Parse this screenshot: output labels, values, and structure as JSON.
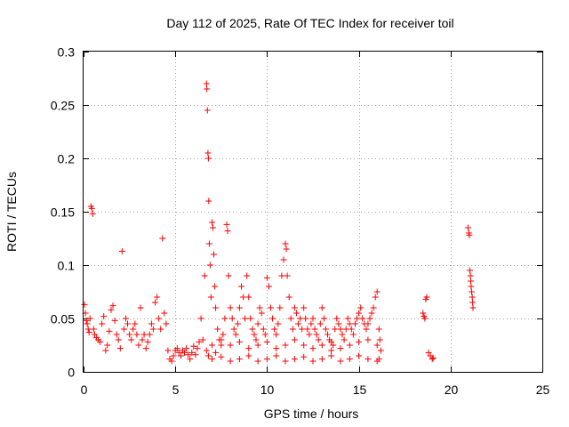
{
  "chart_data": {
    "type": "scatter",
    "title": "Day 112 of 2025, Rate Of TEC Index for receiver toil",
    "xlabel": "GPS time / hours",
    "ylabel": "ROTI / TECUs",
    "xlim": [
      0,
      25
    ],
    "ylim": [
      0,
      0.3
    ],
    "xticks": [
      0,
      5,
      10,
      15,
      20,
      25
    ],
    "xtick_labels": [
      "0",
      "5",
      "10",
      "15",
      "20",
      "25"
    ],
    "yticks": [
      0,
      0.05,
      0.1,
      0.15,
      0.2,
      0.25,
      0.3
    ],
    "ytick_labels": [
      "0",
      "0.05",
      "0.1",
      "0.15",
      "0.2",
      "0.25",
      "0.3"
    ],
    "grid": true,
    "marker": "+",
    "color": "#ff0000",
    "series": [
      {
        "name": "ROTI",
        "points": [
          [
            0.05,
            0.063
          ],
          [
            0.1,
            0.055
          ],
          [
            0.15,
            0.048
          ],
          [
            0.2,
            0.045
          ],
          [
            0.25,
            0.04
          ],
          [
            0.3,
            0.037
          ],
          [
            0.35,
            0.05
          ],
          [
            0.4,
            0.155
          ],
          [
            0.45,
            0.153
          ],
          [
            0.5,
            0.148
          ],
          [
            0.55,
            0.04
          ],
          [
            0.6,
            0.035
          ],
          [
            0.7,
            0.032
          ],
          [
            0.8,
            0.03
          ],
          [
            0.9,
            0.028
          ],
          [
            1.0,
            0.045
          ],
          [
            1.1,
            0.052
          ],
          [
            1.2,
            0.02
          ],
          [
            1.3,
            0.025
          ],
          [
            1.4,
            0.038
          ],
          [
            1.5,
            0.058
          ],
          [
            1.6,
            0.062
          ],
          [
            1.7,
            0.048
          ],
          [
            1.8,
            0.035
          ],
          [
            1.9,
            0.03
          ],
          [
            2.0,
            0.022
          ],
          [
            2.1,
            0.113
          ],
          [
            2.2,
            0.04
          ],
          [
            2.3,
            0.05
          ],
          [
            2.4,
            0.045
          ],
          [
            2.5,
            0.035
          ],
          [
            2.6,
            0.03
          ],
          [
            2.7,
            0.04
          ],
          [
            2.8,
            0.045
          ],
          [
            2.9,
            0.035
          ],
          [
            3.0,
            0.025
          ],
          [
            3.1,
            0.06
          ],
          [
            3.2,
            0.03
          ],
          [
            3.3,
            0.035
          ],
          [
            3.4,
            0.022
          ],
          [
            3.5,
            0.028
          ],
          [
            3.6,
            0.035
          ],
          [
            3.7,
            0.045
          ],
          [
            3.8,
            0.04
          ],
          [
            3.9,
            0.065
          ],
          [
            4.0,
            0.07
          ],
          [
            4.1,
            0.05
          ],
          [
            4.2,
            0.04
          ],
          [
            4.3,
            0.125
          ],
          [
            4.4,
            0.055
          ],
          [
            4.5,
            0.045
          ],
          [
            4.6,
            0.02
          ],
          [
            4.7,
            0.012
          ],
          [
            4.8,
            0.01
          ],
          [
            4.9,
            0.015
          ],
          [
            5.0,
            0.02
          ],
          [
            5.1,
            0.022
          ],
          [
            5.2,
            0.018
          ],
          [
            5.3,
            0.015
          ],
          [
            5.4,
            0.02
          ],
          [
            5.5,
            0.018
          ],
          [
            5.6,
            0.022
          ],
          [
            5.7,
            0.016
          ],
          [
            5.8,
            0.012
          ],
          [
            5.9,
            0.018
          ],
          [
            6.0,
            0.024
          ],
          [
            6.1,
            0.016
          ],
          [
            6.2,
            0.022
          ],
          [
            6.3,
            0.028
          ],
          [
            6.4,
            0.05
          ],
          [
            6.5,
            0.03
          ],
          [
            6.6,
            0.09
          ],
          [
            6.7,
            0.27
          ],
          [
            6.72,
            0.265
          ],
          [
            6.75,
            0.245
          ],
          [
            6.78,
            0.205
          ],
          [
            6.8,
            0.2
          ],
          [
            6.82,
            0.16
          ],
          [
            6.85,
            0.12
          ],
          [
            6.9,
            0.1
          ],
          [
            6.95,
            0.07
          ],
          [
            7.0,
            0.14
          ],
          [
            7.05,
            0.135
          ],
          [
            7.1,
            0.11
          ],
          [
            7.15,
            0.08
          ],
          [
            7.2,
            0.06
          ],
          [
            7.3,
            0.04
          ],
          [
            7.4,
            0.03
          ],
          [
            7.5,
            0.025
          ],
          [
            7.6,
            0.035
          ],
          [
            7.7,
            0.05
          ],
          [
            7.8,
            0.138
          ],
          [
            7.85,
            0.132
          ],
          [
            7.9,
            0.09
          ],
          [
            8.0,
            0.06
          ],
          [
            8.1,
            0.05
          ],
          [
            8.2,
            0.04
          ],
          [
            8.3,
            0.035
          ],
          [
            8.4,
            0.045
          ],
          [
            8.5,
            0.06
          ],
          [
            8.6,
            0.08
          ],
          [
            8.7,
            0.07
          ],
          [
            8.8,
            0.05
          ],
          [
            8.9,
            0.09
          ],
          [
            9.0,
            0.07
          ],
          [
            9.1,
            0.05
          ],
          [
            9.2,
            0.04
          ],
          [
            9.3,
            0.035
          ],
          [
            9.4,
            0.03
          ],
          [
            9.5,
            0.045
          ],
          [
            9.6,
            0.06
          ],
          [
            9.7,
            0.055
          ],
          [
            9.8,
            0.04
          ],
          [
            9.9,
            0.035
          ],
          [
            10.0,
            0.088
          ],
          [
            10.1,
            0.08
          ],
          [
            10.2,
            0.06
          ],
          [
            10.3,
            0.05
          ],
          [
            10.4,
            0.04
          ],
          [
            10.5,
            0.035
          ],
          [
            10.6,
            0.045
          ],
          [
            10.7,
            0.06
          ],
          [
            10.8,
            0.09
          ],
          [
            10.9,
            0.105
          ],
          [
            11.0,
            0.12
          ],
          [
            11.05,
            0.115
          ],
          [
            11.1,
            0.09
          ],
          [
            11.2,
            0.07
          ],
          [
            11.3,
            0.05
          ],
          [
            11.4,
            0.04
          ],
          [
            11.5,
            0.06
          ],
          [
            11.6,
            0.055
          ],
          [
            11.7,
            0.045
          ],
          [
            11.8,
            0.05
          ],
          [
            11.9,
            0.04
          ],
          [
            12.0,
            0.06
          ],
          [
            12.1,
            0.05
          ],
          [
            12.2,
            0.04
          ],
          [
            12.3,
            0.035
          ],
          [
            12.4,
            0.045
          ],
          [
            12.5,
            0.05
          ],
          [
            12.6,
            0.04
          ],
          [
            12.7,
            0.035
          ],
          [
            12.8,
            0.03
          ],
          [
            12.9,
            0.045
          ],
          [
            13.0,
            0.06
          ],
          [
            13.1,
            0.05
          ],
          [
            13.2,
            0.04
          ],
          [
            13.3,
            0.035
          ],
          [
            13.4,
            0.03
          ],
          [
            13.5,
            0.028
          ],
          [
            13.6,
            0.025
          ],
          [
            13.7,
            0.04
          ],
          [
            13.8,
            0.05
          ],
          [
            13.9,
            0.045
          ],
          [
            14.0,
            0.04
          ],
          [
            14.1,
            0.035
          ],
          [
            14.2,
            0.03
          ],
          [
            14.3,
            0.04
          ],
          [
            14.4,
            0.05
          ],
          [
            14.5,
            0.045
          ],
          [
            14.6,
            0.04
          ],
          [
            14.7,
            0.035
          ],
          [
            14.8,
            0.045
          ],
          [
            14.9,
            0.05
          ],
          [
            15.0,
            0.055
          ],
          [
            15.1,
            0.06
          ],
          [
            15.2,
            0.05
          ],
          [
            15.3,
            0.045
          ],
          [
            15.4,
            0.04
          ],
          [
            15.5,
            0.045
          ],
          [
            15.6,
            0.05
          ],
          [
            15.7,
            0.055
          ],
          [
            15.8,
            0.06
          ],
          [
            15.9,
            0.07
          ],
          [
            16.0,
            0.075
          ],
          [
            16.1,
            0.04
          ],
          [
            16.15,
            0.03
          ],
          [
            16.2,
            0.02
          ],
          [
            6.7,
            0.02
          ],
          [
            6.8,
            0.015
          ],
          [
            7.0,
            0.012
          ],
          [
            7.2,
            0.018
          ],
          [
            7.5,
            0.014
          ],
          [
            8.0,
            0.01
          ],
          [
            8.5,
            0.012
          ],
          [
            9.0,
            0.015
          ],
          [
            9.5,
            0.01
          ],
          [
            10.0,
            0.012
          ],
          [
            10.5,
            0.015
          ],
          [
            11.0,
            0.01
          ],
          [
            11.5,
            0.012
          ],
          [
            12.0,
            0.014
          ],
          [
            12.5,
            0.01
          ],
          [
            13.0,
            0.012
          ],
          [
            13.5,
            0.015
          ],
          [
            14.0,
            0.01
          ],
          [
            14.5,
            0.012
          ],
          [
            15.0,
            0.015
          ],
          [
            15.5,
            0.012
          ],
          [
            16.0,
            0.01
          ],
          [
            16.1,
            0.012
          ],
          [
            7.0,
            0.025
          ],
          [
            7.5,
            0.03
          ],
          [
            8.0,
            0.025
          ],
          [
            8.5,
            0.028
          ],
          [
            9.0,
            0.022
          ],
          [
            9.5,
            0.025
          ],
          [
            10.0,
            0.028
          ],
          [
            10.5,
            0.022
          ],
          [
            11.0,
            0.025
          ],
          [
            11.5,
            0.03
          ],
          [
            12.0,
            0.025
          ],
          [
            12.5,
            0.022
          ],
          [
            13.0,
            0.025
          ],
          [
            13.5,
            0.02
          ],
          [
            14.0,
            0.022
          ],
          [
            14.5,
            0.025
          ],
          [
            15.0,
            0.028
          ],
          [
            15.5,
            0.03
          ],
          [
            16.0,
            0.025
          ],
          [
            18.5,
            0.055
          ],
          [
            18.55,
            0.052
          ],
          [
            18.6,
            0.05
          ],
          [
            18.65,
            0.068
          ],
          [
            18.7,
            0.07
          ],
          [
            18.8,
            0.018
          ],
          [
            18.9,
            0.015
          ],
          [
            19.0,
            0.012
          ],
          [
            19.05,
            0.013
          ],
          [
            20.95,
            0.135
          ],
          [
            21.0,
            0.13
          ],
          [
            21.02,
            0.128
          ],
          [
            21.05,
            0.095
          ],
          [
            21.08,
            0.09
          ],
          [
            21.1,
            0.085
          ],
          [
            21.12,
            0.08
          ],
          [
            21.15,
            0.075
          ],
          [
            21.18,
            0.07
          ],
          [
            21.2,
            0.065
          ],
          [
            21.22,
            0.06
          ]
        ]
      }
    ]
  }
}
